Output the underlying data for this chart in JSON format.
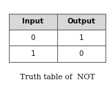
{
  "title": "Truth table of  NOT",
  "col_labels": [
    "Input",
    "Output"
  ],
  "rows": [
    [
      "0",
      "1"
    ],
    [
      "1",
      "0"
    ]
  ],
  "background_color": "#ffffff",
  "table_edge_color": "#666666",
  "header_font_size": 7.5,
  "cell_font_size": 7.5,
  "title_font_size": 7.8,
  "title_color": "#111111",
  "header_bg": "#d8d8d8",
  "cell_bg": "#ffffff"
}
